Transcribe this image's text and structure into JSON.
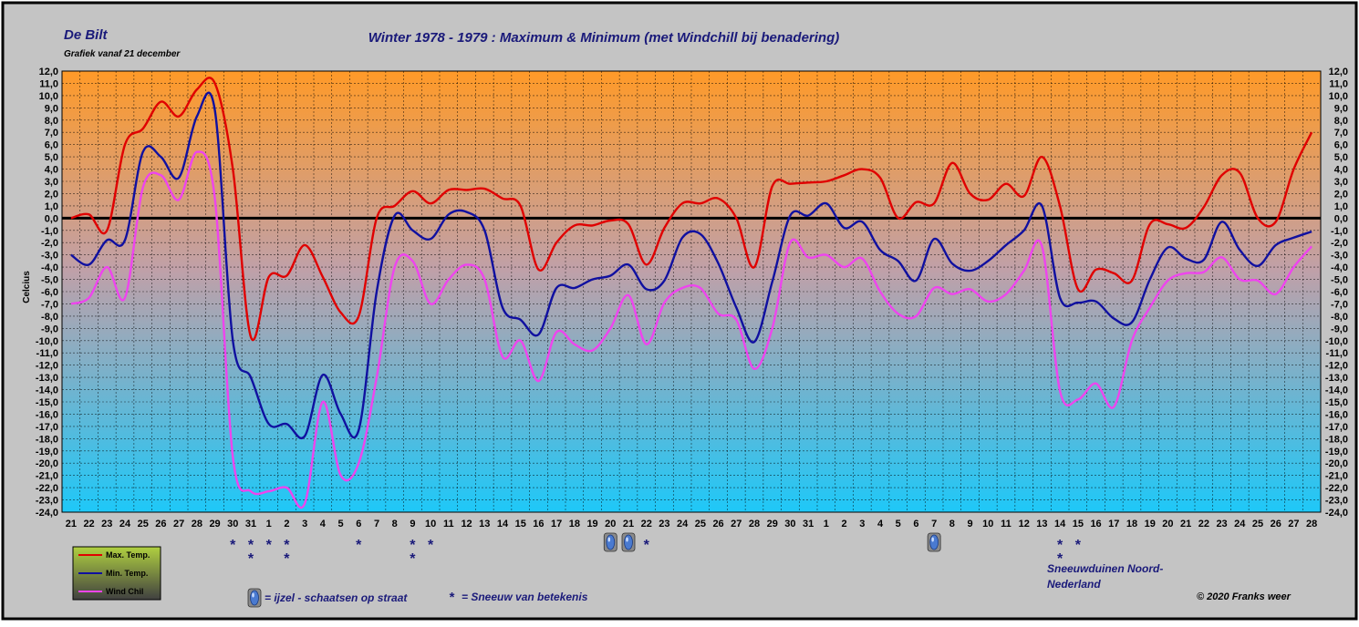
{
  "header": {
    "station": "De Bilt",
    "subtitle": "Grafiek vanaf 21 december",
    "title": "Winter 1978 - 1979 : Maximum & Minimum  (met Windchill bij benadering)"
  },
  "chart_data": {
    "type": "line",
    "ylabel": "Celcius",
    "ylim": [
      -24,
      12
    ],
    "ystep": 1,
    "grid": true,
    "zero_line": true,
    "x": [
      "21",
      "22",
      "23",
      "24",
      "25",
      "26",
      "27",
      "28",
      "29",
      "30",
      "31",
      "1",
      "2",
      "3",
      "4",
      "5",
      "6",
      "7",
      "8",
      "9",
      "10",
      "11",
      "12",
      "13",
      "14",
      "15",
      "16",
      "17",
      "18",
      "19",
      "20",
      "21",
      "22",
      "23",
      "24",
      "25",
      "26",
      "27",
      "28",
      "29",
      "30",
      "31",
      "1",
      "2",
      "3",
      "4",
      "5",
      "6",
      "7",
      "8",
      "9",
      "10",
      "11",
      "12",
      "13",
      "14",
      "15",
      "16",
      "17",
      "18",
      "19",
      "20",
      "21",
      "22",
      "23",
      "24",
      "25",
      "26",
      "27",
      "28"
    ],
    "series": [
      {
        "name": "Max. Temp.",
        "color": "#e00000",
        "values": [
          0.0,
          0.3,
          -1.0,
          6.0,
          7.3,
          9.5,
          8.3,
          10.5,
          11.0,
          4.0,
          -9.7,
          -4.8,
          -4.7,
          -2.2,
          -4.8,
          -7.7,
          -8.0,
          0.0,
          1.0,
          2.2,
          1.2,
          2.3,
          2.3,
          2.4,
          1.6,
          1.0,
          -4.2,
          -2.0,
          -0.6,
          -0.6,
          -0.2,
          -0.5,
          -3.8,
          -0.8,
          1.2,
          1.2,
          1.6,
          0.0,
          -4.0,
          2.6,
          2.8,
          2.9,
          3.0,
          3.5,
          4.0,
          3.3,
          0.0,
          1.3,
          1.2,
          4.5,
          2.0,
          1.5,
          2.8,
          1.8,
          5.0,
          1.0,
          -5.8,
          -4.2,
          -4.5,
          -5.1,
          -0.5,
          -0.5,
          -0.8,
          0.9,
          3.5,
          3.7,
          0.0,
          -0.3,
          4.0,
          7.0
        ]
      },
      {
        "name": "Min. Temp.",
        "color": "#1010a0",
        "values": [
          -3.0,
          -3.8,
          -1.8,
          -1.8,
          5.4,
          5.0,
          3.3,
          8.3,
          8.8,
          -10.0,
          -13.0,
          -16.8,
          -16.8,
          -17.8,
          -12.8,
          -16.0,
          -17.3,
          -6.0,
          0.2,
          -1.0,
          -1.7,
          0.3,
          0.5,
          -1.0,
          -7.3,
          -8.3,
          -9.5,
          -5.7,
          -5.7,
          -5.0,
          -4.7,
          -3.8,
          -5.8,
          -5.1,
          -1.6,
          -1.3,
          -3.7,
          -7.3,
          -10.1,
          -5.2,
          0.2,
          0.2,
          1.2,
          -0.8,
          -0.3,
          -2.6,
          -3.5,
          -5.1,
          -1.7,
          -3.7,
          -4.3,
          -3.5,
          -2.2,
          -1.0,
          1.0,
          -6.5,
          -6.9,
          -6.8,
          -8.2,
          -8.5,
          -5.0,
          -2.4,
          -3.3,
          -3.4,
          -0.3,
          -2.6,
          -3.9,
          -2.2,
          -1.6,
          -1.1
        ]
      },
      {
        "name": "Wind Chil",
        "color": "#ee44ee",
        "values": [
          -7.0,
          -6.5,
          -4.0,
          -6.5,
          2.5,
          3.5,
          1.5,
          5.4,
          1.6,
          -19.5,
          -22.3,
          -22.3,
          -22.0,
          -23.3,
          -15.0,
          -21.0,
          -20.0,
          -13.0,
          -4.0,
          -3.5,
          -7.0,
          -5.0,
          -3.8,
          -5.0,
          -11.3,
          -10.0,
          -13.3,
          -9.3,
          -10.3,
          -10.8,
          -9.0,
          -6.3,
          -10.3,
          -6.9,
          -5.7,
          -5.7,
          -7.8,
          -8.3,
          -12.3,
          -9.0,
          -2.0,
          -3.2,
          -3.0,
          -4.0,
          -3.3,
          -6.0,
          -7.8,
          -8.0,
          -5.7,
          -6.2,
          -5.8,
          -6.8,
          -6.2,
          -4.3,
          -2.3,
          -14.1,
          -14.8,
          -13.5,
          -15.4,
          -10.0,
          -7.3,
          -5.1,
          -4.5,
          -4.4,
          -3.2,
          -5.0,
          -5.1,
          -6.2,
          -4.0,
          -2.3
        ]
      }
    ]
  },
  "markers": {
    "snow": [
      {
        "day": 9,
        "count": 1
      },
      {
        "day": 10,
        "count": 2
      },
      {
        "day": 11,
        "count": 1
      },
      {
        "day": 12,
        "count": 2
      },
      {
        "day": 16,
        "count": 1
      },
      {
        "day": 19,
        "count": 2
      },
      {
        "day": 20,
        "count": 1
      },
      {
        "day": 32,
        "count": 1
      },
      {
        "day": 55,
        "count": 2
      },
      {
        "day": 56,
        "count": 1
      }
    ],
    "ice": [
      30,
      31,
      48
    ],
    "snow_symbol": "*"
  },
  "legend_notes": {
    "ice": "= ijzel - schaatsen op straat",
    "snow_symbol": "*",
    "snow": "= Sneeuw van betekenis"
  },
  "annotation": {
    "line1": "Sneeuwduinen Noord-",
    "line2": "Nederland"
  },
  "copyright": "© 2020 Franks weer",
  "colors": {
    "frame": "#c4c4c4",
    "plot_top": "#ff9a28",
    "plot_mid": "#c0a0a8",
    "plot_bottom": "#1ec8f8",
    "legend_top": "#b0d040",
    "legend_bottom": "#404040"
  }
}
